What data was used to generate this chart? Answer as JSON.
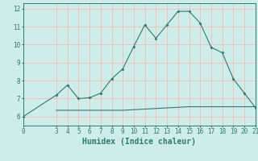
{
  "xlabel": "Humidex (Indice chaleur)",
  "xlim": [
    0,
    21
  ],
  "ylim": [
    5.5,
    12.3
  ],
  "xticks": [
    0,
    3,
    4,
    5,
    6,
    7,
    8,
    9,
    10,
    11,
    12,
    13,
    14,
    15,
    16,
    17,
    18,
    19,
    20,
    21
  ],
  "yticks": [
    6,
    7,
    8,
    9,
    10,
    11,
    12
  ],
  "line1_x": [
    0,
    3,
    4,
    5,
    6,
    7,
    8,
    9,
    10,
    11,
    12,
    13,
    14,
    15,
    16,
    17,
    18,
    19,
    20,
    21
  ],
  "line1_y": [
    6.0,
    7.2,
    7.75,
    7.0,
    7.05,
    7.3,
    8.1,
    8.65,
    9.9,
    11.1,
    10.35,
    11.1,
    11.85,
    11.85,
    11.2,
    9.85,
    9.55,
    8.1,
    7.3,
    6.5
  ],
  "line2_x": [
    3,
    9,
    15,
    21
  ],
  "line2_y": [
    6.35,
    6.35,
    6.55,
    6.55
  ],
  "line_color": "#2d7b6e",
  "bg_color": "#ceecea",
  "grid_color": "#f0c0c0",
  "tick_fontsize": 5.5,
  "label_fontsize": 7
}
